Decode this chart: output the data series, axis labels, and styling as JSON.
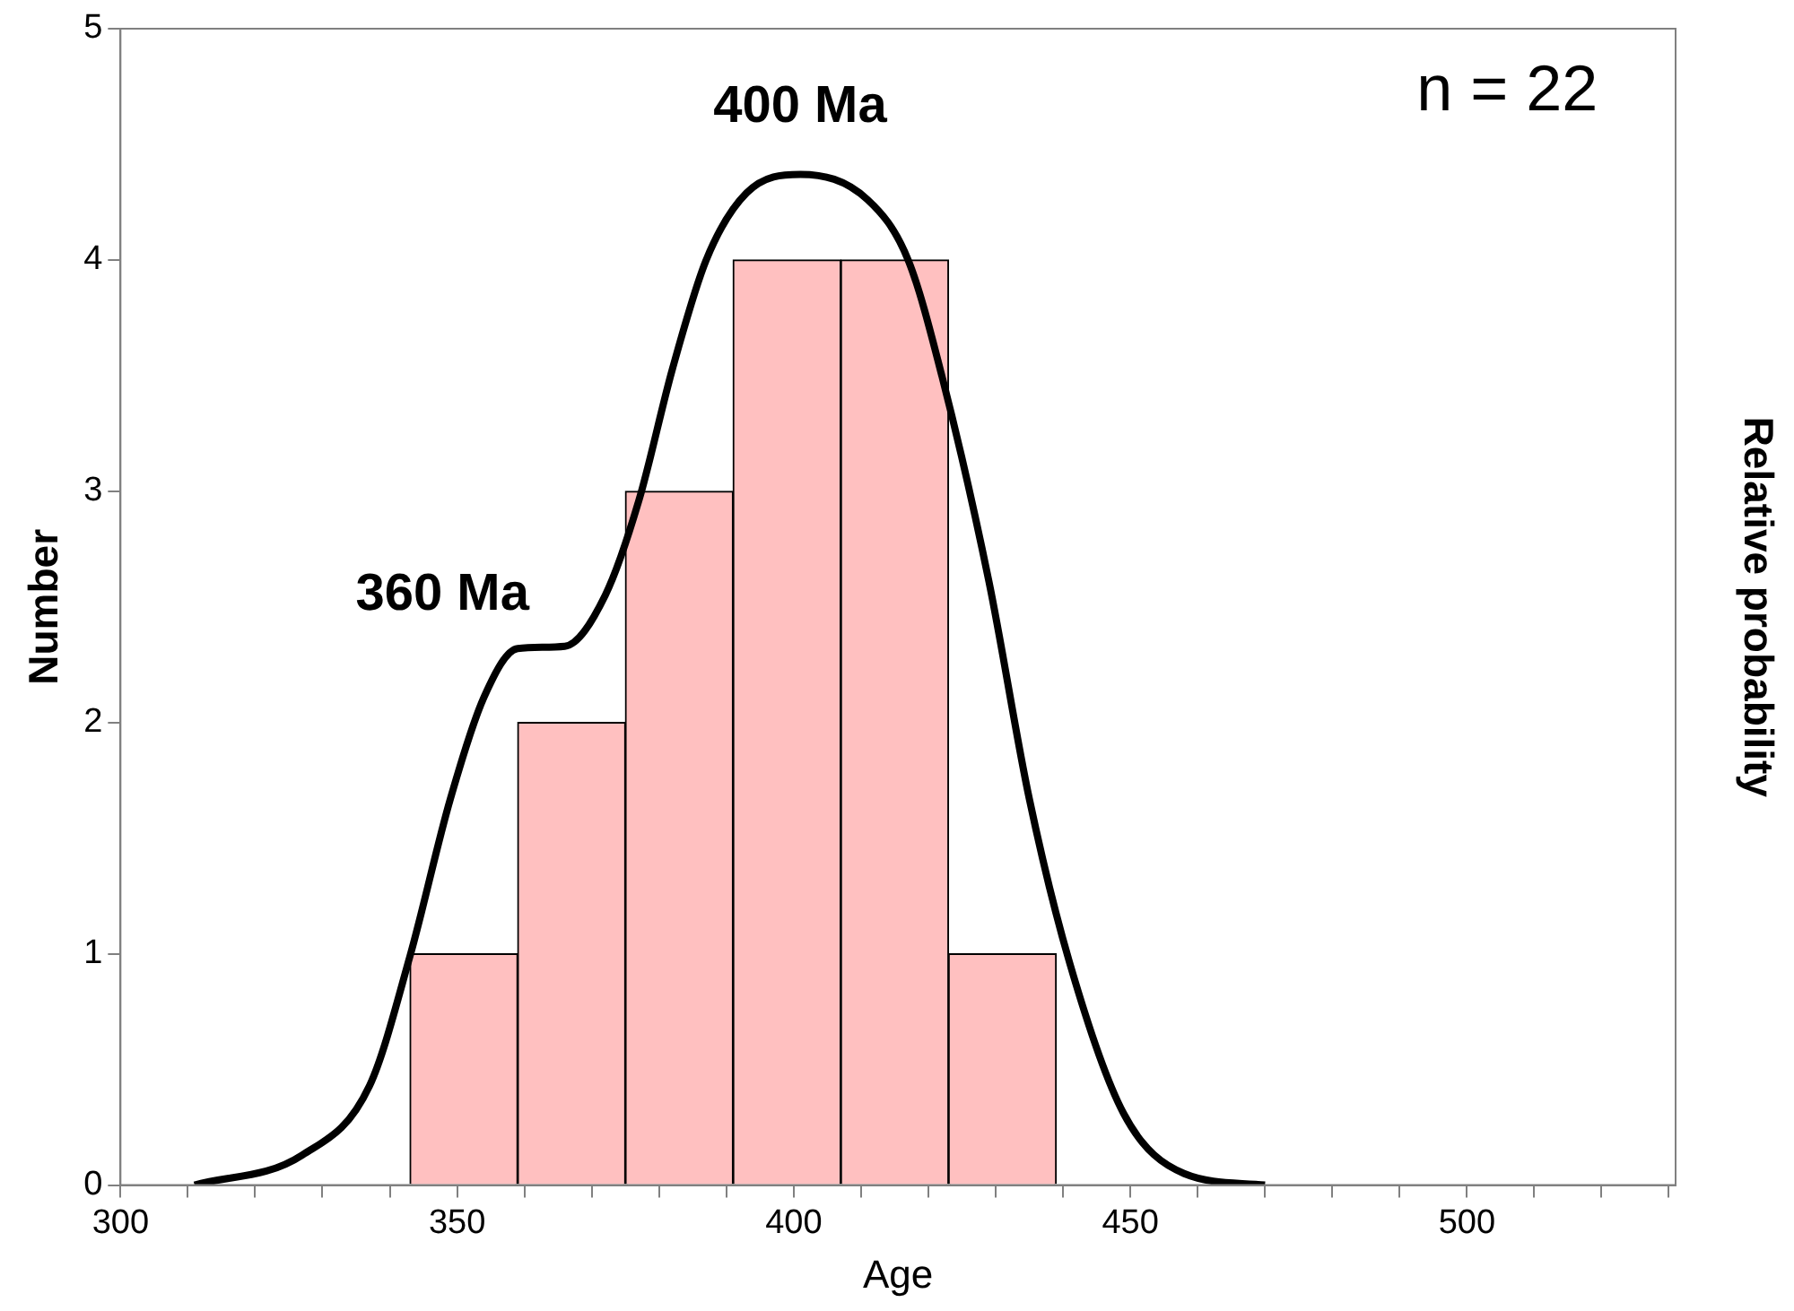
{
  "chart_data": {
    "type": "histogram",
    "xlabel": "Age",
    "ylabel": "Number",
    "y2label": "Relative probability",
    "bins": [
      343,
      359,
      375,
      391,
      407,
      423,
      439
    ],
    "values": [
      1,
      2,
      3,
      4,
      4,
      1
    ],
    "color": "#ffc0c0",
    "series": [
      {
        "type": "line",
        "color": "#000000",
        "x": [
          311,
          327,
          337,
          343,
          349,
          354,
          359,
          366,
          372,
          377,
          382,
          387,
          393,
          401,
          411,
          417,
          422,
          429,
          435,
          441,
          449,
          458,
          470
        ],
        "values": [
          0,
          0.13,
          0.43,
          0.99,
          1.67,
          2.11,
          2.32,
          2.33,
          2.55,
          2.96,
          3.53,
          4.0,
          4.29,
          4.37,
          4.26,
          4.0,
          3.5,
          2.61,
          1.67,
          0.96,
          0.31,
          0.05,
          0
        ]
      }
    ],
    "xlim": [
      300,
      531
    ],
    "xticks": [
      300,
      {
        "value": 310,
        "label": null
      },
      {
        "value": 320,
        "label": null
      },
      {
        "value": 330,
        "label": null
      },
      {
        "value": 340,
        "label": null
      },
      350,
      {
        "value": 360,
        "label": null
      },
      {
        "value": 370,
        "label": null
      },
      {
        "value": 380,
        "label": null
      },
      {
        "value": 390,
        "label": null
      },
      400,
      {
        "value": 410,
        "label": null
      },
      {
        "value": 420,
        "label": null
      },
      {
        "value": 430,
        "label": null
      },
      {
        "value": 440,
        "label": null
      },
      450,
      {
        "value": 460,
        "label": null
      },
      {
        "value": 470,
        "label": null
      },
      {
        "value": 480,
        "label": null
      },
      {
        "value": 490,
        "label": null
      },
      500,
      {
        "value": 510,
        "label": null
      },
      {
        "value": 520,
        "label": null
      },
      {
        "value": 530,
        "label": null
      }
    ],
    "ylim": [
      0,
      5
    ],
    "yticks": [
      0,
      1,
      2,
      3,
      4,
      5
    ],
    "annotations": [
      "400 Ma",
      "360 Ma",
      "n = 22"
    ],
    "grid": false,
    "legend": false,
    "marker": "none",
    "line_style": "solid"
  }
}
